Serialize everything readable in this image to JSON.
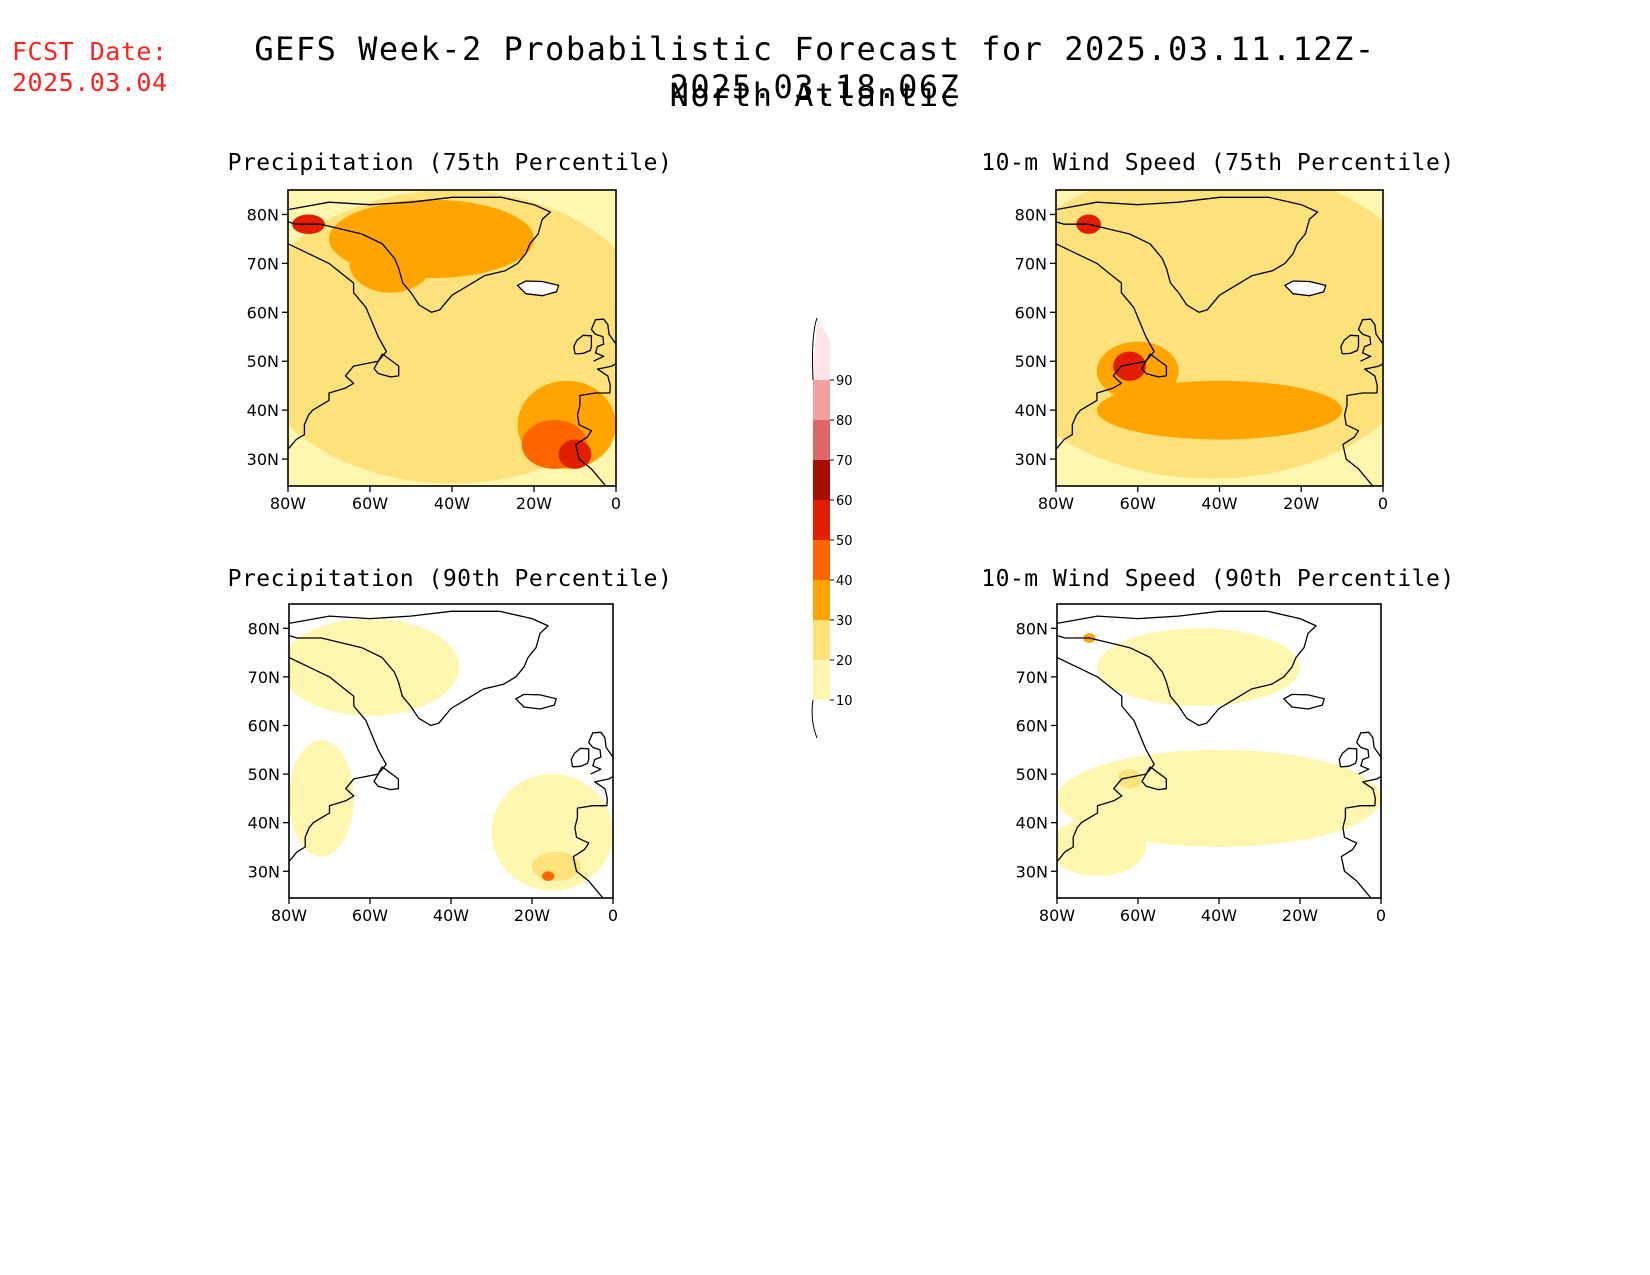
{
  "header": {
    "fcst_label": "FCST Date:",
    "fcst_date": "2025.03.04",
    "title": "GEFS Week-2 Probabilistic Forecast for 2025.03.11.12Z-2025.03.18.06Z",
    "subtitle": "North Atlantic"
  },
  "axes": {
    "lat_labels": [
      "80N",
      "70N",
      "60N",
      "50N",
      "40N",
      "30N"
    ],
    "lon_labels": [
      "80W",
      "60W",
      "40W",
      "20W",
      "0"
    ]
  },
  "panels": [
    {
      "id": "precip75",
      "title": "Precipitation (75th Percentile)",
      "blobs": [
        {
          "lon": -40,
          "lat": 55,
          "rx": 50,
          "ry": 30,
          "level": 20
        },
        {
          "lon": -45,
          "lat": 75,
          "rx": 25,
          "ry": 8,
          "level": 30
        },
        {
          "lon": -55,
          "lat": 70,
          "rx": 10,
          "ry": 6,
          "level": 30
        },
        {
          "lon": -12,
          "lat": 37,
          "rx": 12,
          "ry": 9,
          "level": 30
        },
        {
          "lon": -15,
          "lat": 33,
          "rx": 8,
          "ry": 5,
          "level": 40
        },
        {
          "lon": -75,
          "lat": 78,
          "rx": 4,
          "ry": 2,
          "level": 50
        },
        {
          "lon": -10,
          "lat": 31,
          "rx": 4,
          "ry": 3,
          "level": 50
        }
      ]
    },
    {
      "id": "wind75",
      "title": "10-m Wind Speed (75th Percentile)",
      "blobs": [
        {
          "lon": -42,
          "lat": 58,
          "rx": 55,
          "ry": 32,
          "level": 20
        },
        {
          "lon": -40,
          "lat": 40,
          "rx": 30,
          "ry": 6,
          "level": 30
        },
        {
          "lon": -60,
          "lat": 48,
          "rx": 10,
          "ry": 6,
          "level": 30
        },
        {
          "lon": -62,
          "lat": 49,
          "rx": 4,
          "ry": 3,
          "level": 50
        },
        {
          "lon": -72,
          "lat": 78,
          "rx": 3,
          "ry": 2,
          "level": 50
        }
      ]
    },
    {
      "id": "precip90",
      "title": "Precipitation (90th Percentile)",
      "blobs": [
        {
          "lon": -60,
          "lat": 72,
          "rx": 22,
          "ry": 10,
          "level": 10
        },
        {
          "lon": -72,
          "lat": 45,
          "rx": 8,
          "ry": 12,
          "level": 10
        },
        {
          "lon": -15,
          "lat": 38,
          "rx": 15,
          "ry": 12,
          "level": 10
        },
        {
          "lon": -14,
          "lat": 31,
          "rx": 6,
          "ry": 3,
          "level": 20
        },
        {
          "lon": -16,
          "lat": 29,
          "rx": 1.5,
          "ry": 1,
          "level": 40
        }
      ]
    },
    {
      "id": "wind90",
      "title": "10-m Wind Speed (90th Percentile)",
      "blobs": [
        {
          "lon": -40,
          "lat": 45,
          "rx": 40,
          "ry": 10,
          "level": 10
        },
        {
          "lon": -45,
          "lat": 72,
          "rx": 25,
          "ry": 8,
          "level": 10
        },
        {
          "lon": -70,
          "lat": 35,
          "rx": 12,
          "ry": 6,
          "level": 10
        },
        {
          "lon": -62,
          "lat": 49,
          "rx": 3,
          "ry": 2,
          "level": 20
        },
        {
          "lon": -72,
          "lat": 78,
          "rx": 1.5,
          "ry": 1,
          "level": 30
        }
      ]
    }
  ],
  "colorbar": {
    "levels": [
      "10",
      "20",
      "30",
      "40",
      "50",
      "60",
      "70",
      "80",
      "90"
    ],
    "colors": [
      "#fff7b0",
      "#fde17a",
      "#ffa400",
      "#ff6600",
      "#e21d00",
      "#a50f00",
      "#dd6666",
      "#f4a0a0",
      "#ffe6e6"
    ]
  },
  "colors": {
    "date_text": "#ff2020"
  }
}
